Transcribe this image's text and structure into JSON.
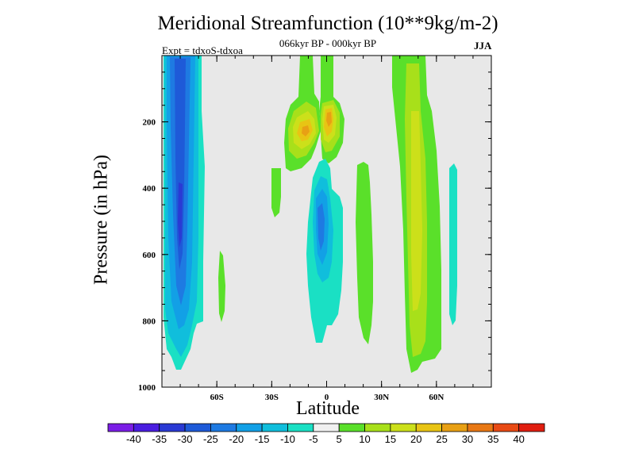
{
  "chart_data": {
    "type": "contour",
    "title": "Meridional Streamfunction (10**9kg/m-2)",
    "subtitle": "066kyr BP - 000kyr BP",
    "experiment_label": "Expt = tdxoS-tdxoa",
    "season": "JJA",
    "xlabel": "Latitude",
    "ylabel": "Pressure (in hPa)",
    "xlim": [
      -90,
      90
    ],
    "ylim": [
      1000,
      0
    ],
    "x_ticks": [
      {
        "value": -60,
        "label": "60S"
      },
      {
        "value": -30,
        "label": "30S"
      },
      {
        "value": 0,
        "label": "0"
      },
      {
        "value": 30,
        "label": "30N"
      },
      {
        "value": 60,
        "label": "60N"
      }
    ],
    "y_ticks": [
      {
        "value": 200,
        "label": "200"
      },
      {
        "value": 400,
        "label": "400"
      },
      {
        "value": 600,
        "label": "600"
      },
      {
        "value": 800,
        "label": "800"
      },
      {
        "value": 1000,
        "label": "1000"
      }
    ],
    "background_color": "#e8e8e8",
    "colorbar": {
      "labels": [
        "-40",
        "-35",
        "-30",
        "-25",
        "-20",
        "-15",
        "-10",
        "-5",
        "5",
        "10",
        "15",
        "20",
        "25",
        "30",
        "35",
        "40"
      ],
      "colors": [
        "#7b1ee6",
        "#4a1ee0",
        "#2a3ad4",
        "#1e5ad8",
        "#1e7ae2",
        "#12a0e6",
        "#10bedc",
        "#1ae0c4",
        "#f0f0f0",
        "#5ae02a",
        "#a8e01a",
        "#cce01a",
        "#e8c414",
        "#e8a014",
        "#e87814",
        "#e84a14",
        "#e01e10"
      ]
    },
    "features": [
      {
        "lat_min": -87,
        "lat_max": -65,
        "p_top": 0,
        "p_bottom": 950,
        "peak_value": -25,
        "peak_lat": -78,
        "peak_p": 480
      },
      {
        "lat_min": -58,
        "lat_max": -55,
        "p_top": 590,
        "p_bottom": 810,
        "peak_value": 5,
        "peak_lat": -56,
        "peak_p": 700
      },
      {
        "lat_min": -30,
        "lat_max": -24,
        "p_top": 340,
        "p_bottom": 490,
        "peak_value": 5,
        "peak_lat": -27,
        "peak_p": 410
      },
      {
        "lat_min": -23,
        "lat_max": -1,
        "p_top": 0,
        "p_bottom": 330,
        "peak_value": 25,
        "peak_lat": -12,
        "peak_p": 230
      },
      {
        "lat_min": -3,
        "lat_max": 10,
        "p_top": 0,
        "p_bottom": 330,
        "peak_value": 25,
        "peak_lat": 3,
        "peak_p": 200
      },
      {
        "lat_min": -9,
        "lat_max": 10,
        "p_top": 310,
        "p_bottom": 880,
        "peak_value": -20,
        "peak_lat": -3,
        "peak_p": 520
      },
      {
        "lat_min": 16,
        "lat_max": 27,
        "p_top": 320,
        "p_bottom": 860,
        "peak_value": 5,
        "peak_lat": 21,
        "peak_p": 600
      },
      {
        "lat_min": 47,
        "lat_max": 64,
        "p_top": 0,
        "p_bottom": 960,
        "peak_value": 20,
        "peak_lat": 52,
        "peak_p": 520
      },
      {
        "lat_min": 68,
        "lat_max": 72,
        "p_top": 400,
        "p_bottom": 740,
        "peak_value": -10,
        "peak_lat": 70,
        "peak_p": 520
      }
    ]
  }
}
